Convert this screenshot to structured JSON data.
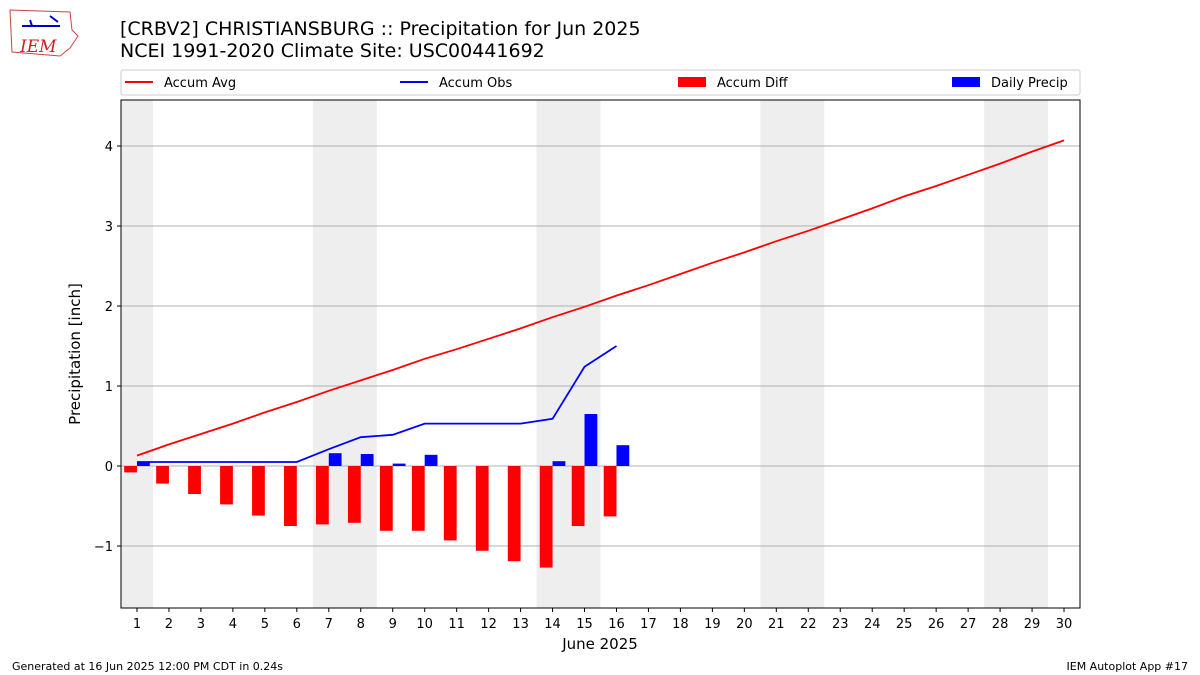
{
  "chart_data": {
    "type": "combo",
    "title": "[CRBV2] CHRISTIANSBURG :: Precipitation for Jun 2025",
    "subtitle": "NCEI 1991-2020 Climate Site: USC00441692",
    "x_label": "June 2025",
    "y_label": "Precipitation [inch]",
    "x": [
      1,
      2,
      3,
      4,
      5,
      6,
      7,
      8,
      9,
      10,
      11,
      12,
      13,
      14,
      15,
      16,
      17,
      18,
      19,
      20,
      21,
      22,
      23,
      24,
      25,
      26,
      27,
      28,
      29,
      30
    ],
    "xlim": [
      0.5,
      30.5
    ],
    "xticks": [
      1,
      2,
      3,
      4,
      5,
      6,
      7,
      8,
      9,
      10,
      11,
      12,
      13,
      14,
      15,
      16,
      17,
      18,
      19,
      20,
      21,
      22,
      23,
      24,
      25,
      26,
      27,
      28,
      29,
      30
    ],
    "ylim": [
      -1.775,
      4.575
    ],
    "yticks": [
      {
        "value": -1,
        "label": "−1"
      },
      0,
      1,
      2,
      3,
      4
    ],
    "grid": true,
    "weekend_shading": [
      [
        0.5,
        1.5
      ],
      [
        6.5,
        8.5
      ],
      [
        13.5,
        15.5
      ],
      [
        20.5,
        22.5
      ],
      [
        27.5,
        29.5
      ]
    ],
    "series": [
      {
        "name": "Accum Avg",
        "type": "line",
        "color": "#ff0000",
        "values": [
          0.13,
          0.27,
          0.4,
          0.53,
          0.67,
          0.8,
          0.94,
          1.07,
          1.2,
          1.34,
          1.46,
          1.59,
          1.72,
          1.86,
          1.99,
          2.13,
          2.26,
          2.4,
          2.54,
          2.67,
          2.81,
          2.94,
          3.08,
          3.22,
          3.37,
          3.5,
          3.64,
          3.78,
          3.93,
          4.07
        ]
      },
      {
        "name": "Accum Obs",
        "type": "line",
        "color": "#0000ff",
        "values": [
          0.05,
          0.05,
          0.05,
          0.05,
          0.05,
          0.05,
          0.21,
          0.36,
          0.39,
          0.53,
          0.53,
          0.53,
          0.53,
          0.59,
          1.24,
          1.5,
          null,
          null,
          null,
          null,
          null,
          null,
          null,
          null,
          null,
          null,
          null,
          null,
          null,
          null
        ]
      },
      {
        "name": "Accum Diff",
        "type": "bar",
        "side": "left",
        "color": "#ff0000",
        "values": [
          -0.08,
          -0.22,
          -0.35,
          -0.48,
          -0.62,
          -0.75,
          -0.73,
          -0.71,
          -0.81,
          -0.81,
          -0.93,
          -1.06,
          -1.19,
          -1.27,
          -0.75,
          -0.63,
          null,
          null,
          null,
          null,
          null,
          null,
          null,
          null,
          null,
          null,
          null,
          null,
          null,
          null
        ]
      },
      {
        "name": "Daily Precip",
        "type": "bar",
        "side": "right",
        "color": "#0000ff",
        "values": [
          0.05,
          0,
          0,
          0,
          0,
          0,
          0.16,
          0.15,
          0.03,
          0.14,
          0,
          0,
          0,
          0.06,
          0.65,
          0.26,
          null,
          null,
          null,
          null,
          null,
          null,
          null,
          null,
          null,
          null,
          null,
          null,
          null,
          null
        ]
      }
    ]
  },
  "logo_text": "IEM",
  "footer_left": "Generated at 16 Jun 2025 12:00 PM CDT in 0.24s",
  "footer_right": "IEM Autoplot App #17"
}
